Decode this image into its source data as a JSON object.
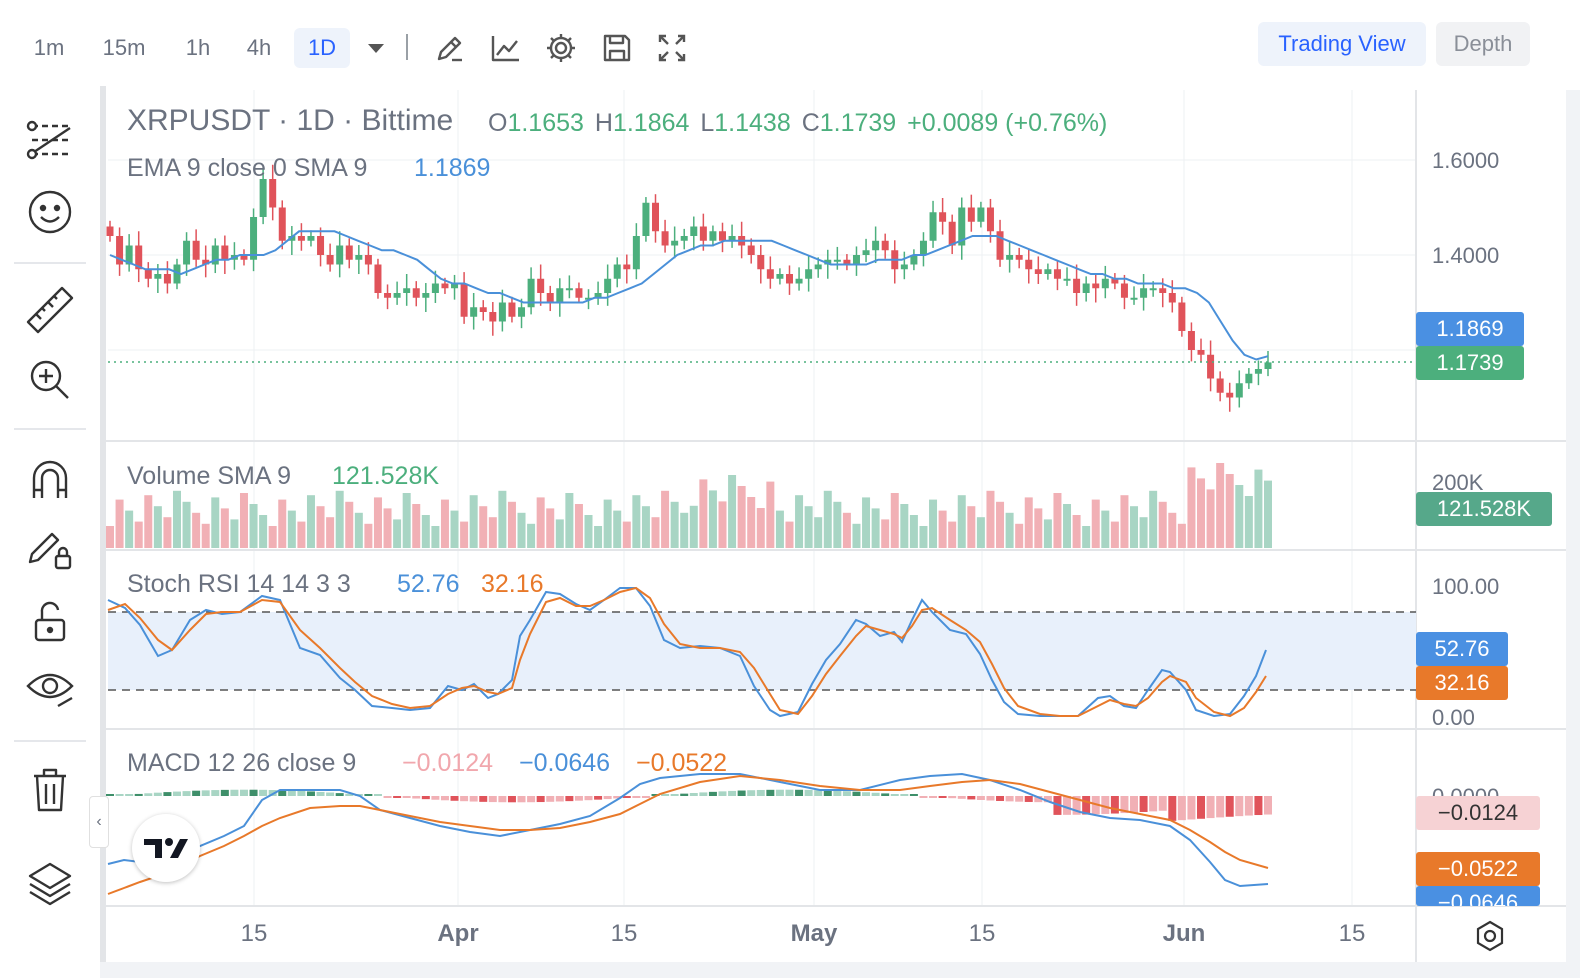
{
  "toolbar": {
    "timeframes": [
      "1m",
      "15m",
      "1h",
      "4h",
      "1D"
    ],
    "active_timeframe": "1D",
    "trading_view_label": "Trading View",
    "depth_label": "Depth"
  },
  "legend": {
    "symbol": "XRPUSDT · 1D · Bittime",
    "o_label": "O",
    "o_value": "1.1653",
    "h_label": "H",
    "h_value": "1.1864",
    "l_label": "L",
    "l_value": "1.1438",
    "c_label": "C",
    "c_value": "1.1739",
    "change": "+0.0089 (+0.76%)",
    "ema_label": "EMA 9 close 0 SMA 9",
    "ema_value": "1.1869",
    "volume_label": "Volume SMA 9",
    "volume_value": "121.528K",
    "stoch_label": "Stoch RSI 14 14 3 3",
    "stoch_k": "52.76",
    "stoch_d": "32.16",
    "macd_label": "MACD 12 26 close 9",
    "macd_hist": "−0.0124",
    "macd_line": "−0.0646",
    "macd_signal": "−0.0522"
  },
  "price_axis": {
    "ticks": [
      "1.6000",
      "1.4000"
    ],
    "ema_pill": "1.1869",
    "close_pill": "1.1739",
    "volume_tick": "200K",
    "volume_pill": "121.528K",
    "stoch_ticks": [
      "100.00",
      "0.00"
    ],
    "stoch_k_pill": "52.76",
    "stoch_d_pill": "32.16",
    "macd_tick": "0.0000",
    "macd_hist_pill": "−0.0124",
    "macd_signal_pill": "−0.0522",
    "macd_line_pill": "−0.0646"
  },
  "time_axis": {
    "labels": [
      "15",
      "Apr",
      "15",
      "May",
      "15",
      "Jun",
      "15"
    ],
    "bold": [
      false,
      true,
      false,
      true,
      false,
      true,
      false
    ]
  },
  "colors": {
    "up": "#4caf7d",
    "down": "#e0535a",
    "ema": "#4a90d9",
    "stoch_k": "#4a90d9",
    "stoch_d": "#e8792a",
    "close_pill": "#4caf7d",
    "ema_pill": "#4a90e2"
  },
  "chart_data": {
    "type": "candlestick",
    "title": "XRPUSDT · 1D · Bittime",
    "x_labels": [
      "15",
      "Apr",
      "15",
      "May",
      "15",
      "Jun",
      "15"
    ],
    "last_ohlc": {
      "open": 1.1653,
      "high": 1.1864,
      "low": 1.1438,
      "close": 1.1739
    },
    "price": [
      1.44,
      1.38,
      1.42,
      1.37,
      1.35,
      1.36,
      1.34,
      1.38,
      1.43,
      1.39,
      1.38,
      1.42,
      1.39,
      1.4,
      1.39,
      1.48,
      1.56,
      1.5,
      1.43,
      1.44,
      1.43,
      1.44,
      1.4,
      1.38,
      1.42,
      1.39,
      1.4,
      1.38,
      1.32,
      1.31,
      1.32,
      1.33,
      1.31,
      1.32,
      1.34,
      1.33,
      1.34,
      1.27,
      1.29,
      1.28,
      1.26,
      1.3,
      1.27,
      1.29,
      1.35,
      1.32,
      1.3,
      1.33,
      1.33,
      1.31,
      1.31,
      1.32,
      1.35,
      1.38,
      1.37,
      1.44,
      1.51,
      1.45,
      1.42,
      1.43,
      1.44,
      1.46,
      1.43,
      1.45,
      1.43,
      1.44,
      1.42,
      1.4,
      1.37,
      1.35,
      1.36,
      1.34,
      1.35,
      1.37,
      1.38,
      1.39,
      1.39,
      1.38,
      1.4,
      1.41,
      1.43,
      1.41,
      1.37,
      1.38,
      1.4,
      1.43,
      1.49,
      1.47,
      1.42,
      1.5,
      1.47,
      1.5,
      1.45,
      1.39,
      1.4,
      1.39,
      1.37,
      1.36,
      1.37,
      1.35,
      1.35,
      1.32,
      1.34,
      1.33,
      1.35,
      1.34,
      1.31,
      1.31,
      1.33,
      1.33,
      1.32,
      1.3,
      1.24,
      1.2,
      1.19,
      1.14,
      1.11,
      1.1,
      1.13,
      1.15,
      1.16,
      1.1739
    ],
    "ema9": [
      1.4,
      1.39,
      1.38,
      1.37,
      1.37,
      1.37,
      1.36,
      1.37,
      1.38,
      1.39,
      1.39,
      1.4,
      1.4,
      1.4,
      1.41,
      1.43,
      1.45,
      1.45,
      1.45,
      1.45,
      1.44,
      1.43,
      1.42,
      1.41,
      1.41,
      1.4,
      1.39,
      1.37,
      1.35,
      1.34,
      1.34,
      1.33,
      1.32,
      1.32,
      1.31,
      1.3,
      1.3,
      1.3,
      1.3,
      1.3,
      1.3,
      1.31,
      1.31,
      1.32,
      1.33,
      1.34,
      1.36,
      1.38,
      1.4,
      1.41,
      1.42,
      1.42,
      1.43,
      1.43,
      1.43,
      1.43,
      1.43,
      1.42,
      1.41,
      1.4,
      1.39,
      1.38,
      1.38,
      1.38,
      1.38,
      1.39,
      1.39,
      1.39,
      1.4,
      1.4,
      1.41,
      1.42,
      1.43,
      1.44,
      1.44,
      1.44,
      1.43,
      1.42,
      1.41,
      1.4,
      1.39,
      1.38,
      1.37,
      1.36,
      1.36,
      1.35,
      1.35,
      1.34,
      1.34,
      1.34,
      1.33,
      1.33,
      1.32,
      1.3,
      1.26,
      1.22,
      1.19,
      1.18,
      1.1869
    ],
    "volume_sma": "121.528K",
    "stoch_rsi": {
      "k": 52.76,
      "d": 32.16,
      "upper": 80,
      "lower": 20
    },
    "macd": {
      "histogram": -0.0124,
      "macd": -0.0646,
      "signal": -0.0522
    }
  }
}
